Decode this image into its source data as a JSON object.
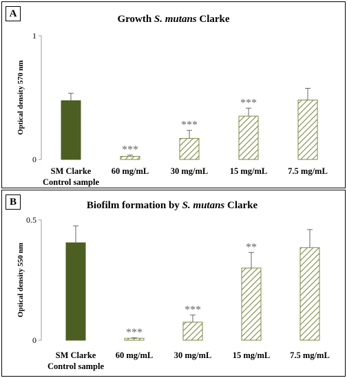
{
  "chart_data": [
    {
      "panel": "A",
      "type": "bar",
      "title_parts": [
        "Growth ",
        "S. mutans",
        " Clarke"
      ],
      "ylabel": "Optical density  570 nm",
      "xlabel": "",
      "ylim": [
        0,
        1
      ],
      "yticks": [
        "0",
        "1"
      ],
      "grid": false,
      "categories": [
        [
          "SM Clarke",
          "Control sample"
        ],
        [
          "60 mg/mL"
        ],
        [
          "30 mg/mL"
        ],
        [
          "15 mg/mL"
        ],
        [
          "7.5 mg/mL"
        ]
      ],
      "values": [
        0.475,
        0.025,
        0.17,
        0.35,
        0.48
      ],
      "errors": [
        0.06,
        0.01,
        0.065,
        0.065,
        0.095
      ],
      "significance": [
        "",
        "***",
        "***",
        "***",
        ""
      ],
      "colors": {
        "control": "#4d5e23",
        "hatch": "#7a8a42"
      }
    },
    {
      "panel": "B",
      "type": "bar",
      "title_parts": [
        "Biofilm  formation  by ",
        "S. mutans",
        " Clarke"
      ],
      "ylabel": "Optical density  550 nm",
      "xlabel": "",
      "ylim": [
        0,
        0.5
      ],
      "yticks": [
        "0",
        "0.5"
      ],
      "grid": false,
      "categories": [
        [
          "SM Clarke",
          "Control sample"
        ],
        [
          "60 mg/mL"
        ],
        [
          "30 mg/mL"
        ],
        [
          "15 mg/mL"
        ],
        [
          "7.5 mg/mL"
        ]
      ],
      "values": [
        0.405,
        0.008,
        0.075,
        0.3,
        0.385
      ],
      "errors": [
        0.07,
        0.002,
        0.03,
        0.065,
        0.075
      ],
      "significance": [
        "",
        "***",
        "***",
        "**",
        ""
      ],
      "colors": {
        "control": "#4d5e23",
        "hatch": "#7a8a42"
      }
    }
  ]
}
